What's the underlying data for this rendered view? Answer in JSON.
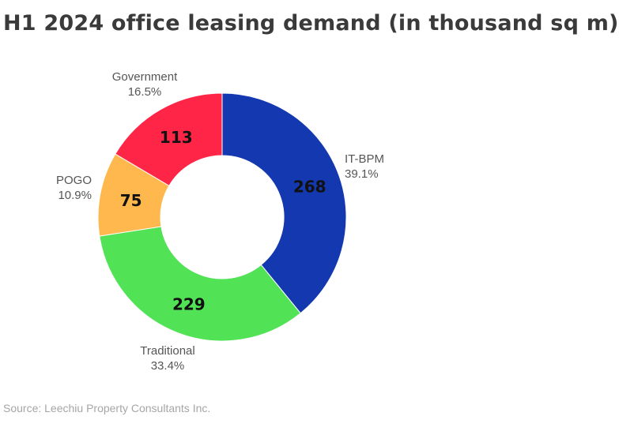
{
  "title": "H1 2024 office leasing demand (in thousand sq m)",
  "source": "Source: Leechiu Property Consultants Inc.",
  "chart_data": {
    "type": "pie",
    "donut": true,
    "title": "H1 2024 office leasing demand (in thousand sq m)",
    "slices": [
      {
        "label": "IT-BPM",
        "value": 268,
        "percent": "39.1%",
        "color": "#1338b0"
      },
      {
        "label": "Traditional",
        "value": 229,
        "percent": "33.4%",
        "color": "#51e255"
      },
      {
        "label": "POGO",
        "value": 75,
        "percent": "10.9%",
        "color": "#ffb84d"
      },
      {
        "label": "Government",
        "value": 113,
        "percent": "16.5%",
        "color": "#ff2547"
      }
    ]
  }
}
